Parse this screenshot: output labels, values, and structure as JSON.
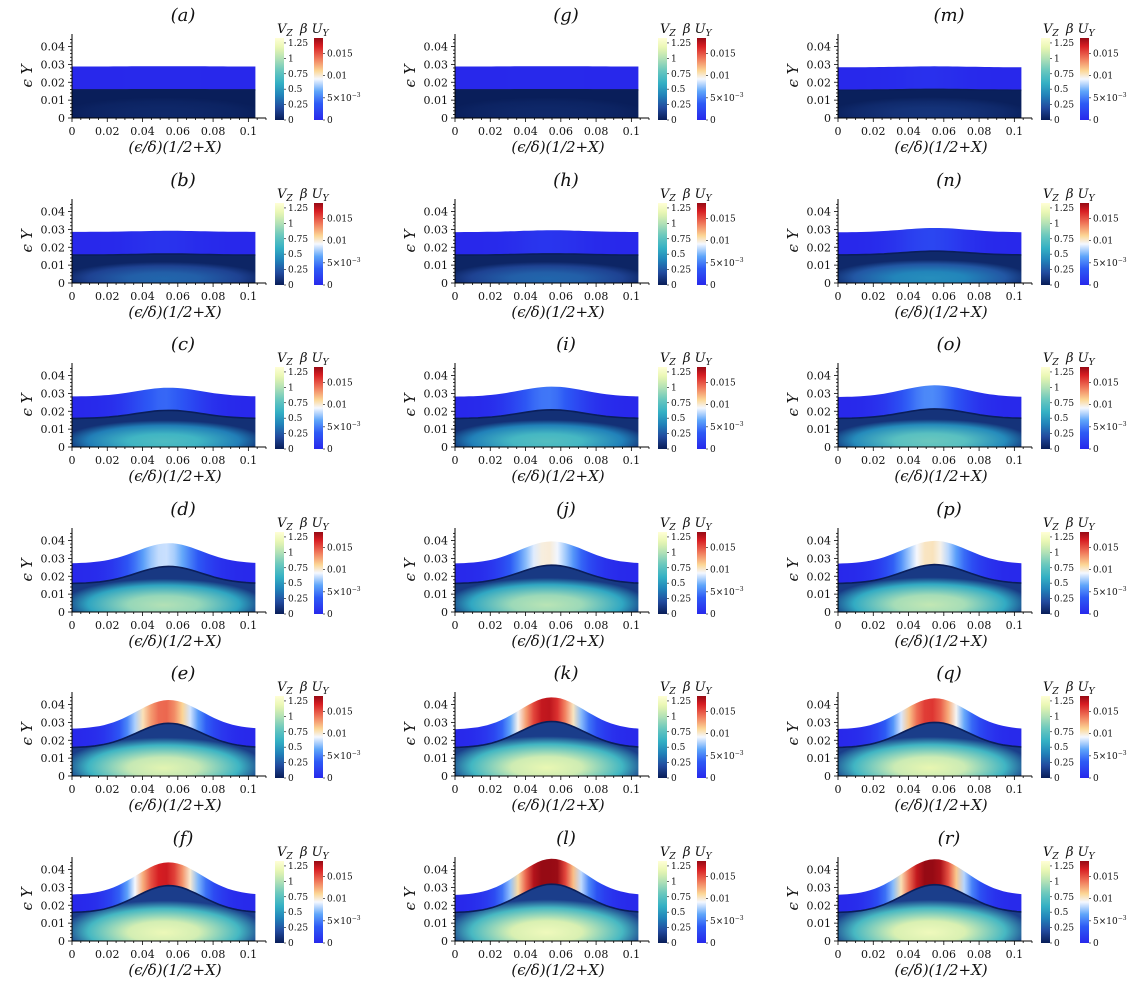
{
  "chart_data": {
    "type": "heatmap",
    "panels": [
      {
        "label": "(a)",
        "upper_peak": 0.029,
        "upper_edge": 0.0288,
        "lower_peak": 0.0158,
        "lower_edge": 0.0157,
        "Uy_peak": 0.0001,
        "Vz_core": 0.05
      },
      {
        "label": "(b)",
        "upper_peak": 0.0292,
        "upper_edge": 0.0286,
        "lower_peak": 0.0162,
        "lower_edge": 0.0156,
        "Uy_peak": 0.0008,
        "Vz_core": 0.3
      },
      {
        "label": "(c)",
        "upper_peak": 0.0332,
        "upper_edge": 0.0283,
        "lower_peak": 0.0205,
        "lower_edge": 0.016,
        "Uy_peak": 0.0042,
        "Vz_core": 0.7
      },
      {
        "label": "(d)",
        "upper_peak": 0.0385,
        "upper_edge": 0.0273,
        "lower_peak": 0.0255,
        "lower_edge": 0.016,
        "Uy_peak": 0.0085,
        "Vz_core": 1.0
      },
      {
        "label": "(e)",
        "upper_peak": 0.0425,
        "upper_edge": 0.0265,
        "lower_peak": 0.0295,
        "lower_edge": 0.016,
        "Uy_peak": 0.0145,
        "Vz_core": 1.15
      },
      {
        "label": "(f)",
        "upper_peak": 0.044,
        "upper_edge": 0.026,
        "lower_peak": 0.031,
        "lower_edge": 0.016,
        "Uy_peak": 0.017,
        "Vz_core": 1.2
      },
      {
        "label": "(g)",
        "upper_peak": 0.029,
        "upper_edge": 0.0288,
        "lower_peak": 0.0158,
        "lower_edge": 0.0157,
        "Uy_peak": 0.0001,
        "Vz_core": 0.05
      },
      {
        "label": "(h)",
        "upper_peak": 0.0295,
        "upper_edge": 0.0285,
        "lower_peak": 0.0163,
        "lower_edge": 0.0156,
        "Uy_peak": 0.001,
        "Vz_core": 0.3
      },
      {
        "label": "(i)",
        "upper_peak": 0.0338,
        "upper_edge": 0.0282,
        "lower_peak": 0.0208,
        "lower_edge": 0.016,
        "Uy_peak": 0.0048,
        "Vz_core": 0.72
      },
      {
        "label": "(j)",
        "upper_peak": 0.0395,
        "upper_edge": 0.0272,
        "lower_peak": 0.0262,
        "lower_edge": 0.016,
        "Uy_peak": 0.01,
        "Vz_core": 1.02
      },
      {
        "label": "(k)",
        "upper_peak": 0.044,
        "upper_edge": 0.0262,
        "lower_peak": 0.0305,
        "lower_edge": 0.016,
        "Uy_peak": 0.0175,
        "Vz_core": 1.18
      },
      {
        "label": "(l)",
        "upper_peak": 0.046,
        "upper_edge": 0.0258,
        "lower_peak": 0.0318,
        "lower_edge": 0.016,
        "Uy_peak": 0.02,
        "Vz_core": 1.22
      },
      {
        "label": "(m)",
        "upper_peak": 0.0289,
        "upper_edge": 0.0284,
        "lower_peak": 0.016,
        "lower_edge": 0.0155,
        "Uy_peak": 0.0006,
        "Vz_core": 0.1
      },
      {
        "label": "(n)",
        "upper_peak": 0.0308,
        "upper_edge": 0.0284,
        "lower_peak": 0.0178,
        "lower_edge": 0.0157,
        "Uy_peak": 0.0022,
        "Vz_core": 0.45
      },
      {
        "label": "(o)",
        "upper_peak": 0.0345,
        "upper_edge": 0.028,
        "lower_peak": 0.0213,
        "lower_edge": 0.016,
        "Uy_peak": 0.0055,
        "Vz_core": 0.8
      },
      {
        "label": "(p)",
        "upper_peak": 0.0398,
        "upper_edge": 0.0271,
        "lower_peak": 0.0265,
        "lower_edge": 0.016,
        "Uy_peak": 0.0105,
        "Vz_core": 1.05
      },
      {
        "label": "(q)",
        "upper_peak": 0.0435,
        "upper_edge": 0.0263,
        "lower_peak": 0.03,
        "lower_edge": 0.016,
        "Uy_peak": 0.016,
        "Vz_core": 1.17
      },
      {
        "label": "(r)",
        "upper_peak": 0.0458,
        "upper_edge": 0.0259,
        "lower_peak": 0.0315,
        "lower_edge": 0.016,
        "Uy_peak": 0.0195,
        "Vz_core": 1.22
      }
    ],
    "xlabel": "(ϵ/δ)(1/2+X)",
    "ylabel": "ϵ Y",
    "x_ticks": [
      "0",
      "0.02",
      "0.04",
      "0.06",
      "0.08",
      "0.1"
    ],
    "y_ticks": [
      "0",
      "0.01",
      "0.02",
      "0.03",
      "0.04"
    ],
    "xlim": [
      0,
      0.11
    ],
    "ylim": [
      0,
      0.047
    ],
    "colorbar_vz": {
      "label_sym": "V",
      "label_sub": "Z",
      "ticks": [
        "1.25",
        "1",
        "0.75",
        "0.5",
        "0.25",
        "0"
      ],
      "tick_values": [
        1.25,
        1,
        0.75,
        0.5,
        0.25,
        0
      ],
      "range": [
        0,
        1.33
      ],
      "colormap": "YlGnBu_r"
    },
    "colorbar_uy": {
      "label_sym": "β U",
      "label_sub": "Y",
      "ticks": [
        "0.015",
        "0.01",
        "5×10",
        "0"
      ],
      "tick_values": [
        0.015,
        0.01,
        0.005,
        0
      ],
      "exponent": "−3",
      "range": [
        0,
        0.0185
      ],
      "colormap": "bwr"
    }
  }
}
